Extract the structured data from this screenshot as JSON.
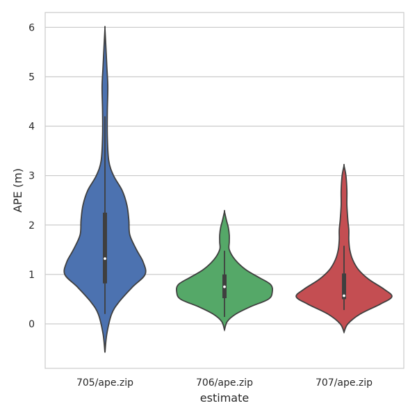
{
  "chart_data": {
    "type": "violin",
    "xlabel": "estimate",
    "ylabel": "APE (m)",
    "ylim": [
      -0.9,
      6.3
    ],
    "yticks": [
      0,
      1,
      2,
      3,
      4,
      5,
      6
    ],
    "ytick_labels": [
      "0",
      "1",
      "2",
      "3",
      "4",
      "5",
      "6"
    ],
    "grid": true,
    "categories": [
      "705/ape.zip",
      "706/ape.zip",
      "707/ape.zip"
    ],
    "series": [
      {
        "category": "705/ape.zip",
        "color": "#4c72b0",
        "kde_min": -0.58,
        "kde_max": 5.97,
        "whisker_low": 0.2,
        "q1": 0.82,
        "median": 1.32,
        "q3": 2.25,
        "whisker_high": 4.2,
        "density_profile": [
          [
            -0.58,
            0.0
          ],
          [
            -0.2,
            0.04
          ],
          [
            0.2,
            0.14
          ],
          [
            0.45,
            0.3
          ],
          [
            0.75,
            0.58
          ],
          [
            1.0,
            0.84
          ],
          [
            1.25,
            0.8
          ],
          [
            1.5,
            0.66
          ],
          [
            1.8,
            0.52
          ],
          [
            2.1,
            0.5
          ],
          [
            2.4,
            0.46
          ],
          [
            2.7,
            0.36
          ],
          [
            3.0,
            0.18
          ],
          [
            3.3,
            0.08
          ],
          [
            3.8,
            0.05
          ],
          [
            4.3,
            0.05
          ],
          [
            4.8,
            0.06
          ],
          [
            5.2,
            0.04
          ],
          [
            5.6,
            0.02
          ],
          [
            5.97,
            0.0
          ]
        ]
      },
      {
        "category": "706/ape.zip",
        "color": "#55a868",
        "kde_min": -0.12,
        "kde_max": 2.27,
        "whisker_low": 0.14,
        "q1": 0.52,
        "median": 0.75,
        "q3": 1.0,
        "whisker_high": 1.48,
        "density_profile": [
          [
            -0.12,
            0.0
          ],
          [
            0.05,
            0.06
          ],
          [
            0.2,
            0.24
          ],
          [
            0.35,
            0.55
          ],
          [
            0.5,
            0.92
          ],
          [
            0.65,
            1.0
          ],
          [
            0.8,
            0.96
          ],
          [
            0.95,
            0.7
          ],
          [
            1.1,
            0.44
          ],
          [
            1.3,
            0.22
          ],
          [
            1.5,
            0.1
          ],
          [
            1.65,
            0.1
          ],
          [
            1.8,
            0.1
          ],
          [
            1.95,
            0.08
          ],
          [
            2.1,
            0.04
          ],
          [
            2.27,
            0.0
          ]
        ]
      },
      {
        "category": "707/ape.zip",
        "color": "#c44e52",
        "kde_min": -0.17,
        "kde_max": 3.2,
        "whisker_low": 0.28,
        "q1": 0.5,
        "median": 0.57,
        "q3": 1.02,
        "whisker_high": 1.58,
        "density_profile": [
          [
            -0.17,
            0.0
          ],
          [
            0.0,
            0.08
          ],
          [
            0.2,
            0.34
          ],
          [
            0.4,
            0.76
          ],
          [
            0.55,
            1.0
          ],
          [
            0.7,
            0.84
          ],
          [
            0.9,
            0.52
          ],
          [
            1.1,
            0.3
          ],
          [
            1.3,
            0.18
          ],
          [
            1.5,
            0.12
          ],
          [
            1.7,
            0.1
          ],
          [
            1.9,
            0.1
          ],
          [
            2.1,
            0.08
          ],
          [
            2.4,
            0.06
          ],
          [
            2.7,
            0.06
          ],
          [
            3.0,
            0.04
          ],
          [
            3.2,
            0.0
          ]
        ]
      }
    ]
  }
}
